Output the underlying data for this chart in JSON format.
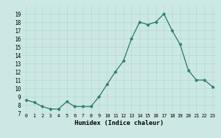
{
  "x": [
    0,
    1,
    2,
    3,
    4,
    5,
    6,
    7,
    8,
    9,
    10,
    11,
    12,
    13,
    14,
    15,
    16,
    17,
    18,
    19,
    20,
    21,
    22,
    23
  ],
  "y": [
    8.6,
    8.3,
    7.8,
    7.5,
    7.5,
    8.4,
    7.8,
    7.8,
    7.8,
    9.0,
    10.5,
    12.0,
    13.3,
    16.0,
    18.0,
    17.7,
    18.0,
    19.0,
    17.0,
    15.3,
    12.2,
    11.0,
    11.0,
    10.2
  ],
  "ylim": [
    7,
    20
  ],
  "xlim": [
    -0.5,
    23.5
  ],
  "yticks": [
    7,
    8,
    9,
    10,
    11,
    12,
    13,
    14,
    15,
    16,
    17,
    18,
    19
  ],
  "xticks": [
    0,
    1,
    2,
    3,
    4,
    5,
    6,
    7,
    8,
    9,
    10,
    11,
    12,
    13,
    14,
    15,
    16,
    17,
    18,
    19,
    20,
    21,
    22,
    23
  ],
  "xlabel": "Humidex (Indice chaleur)",
  "line_color": "#2e7d6e",
  "marker": "o",
  "marker_size": 2.5,
  "bg_color": "#cce8e4",
  "grid_color": "#b8d8d4",
  "axis_bg": "#cce8e4"
}
